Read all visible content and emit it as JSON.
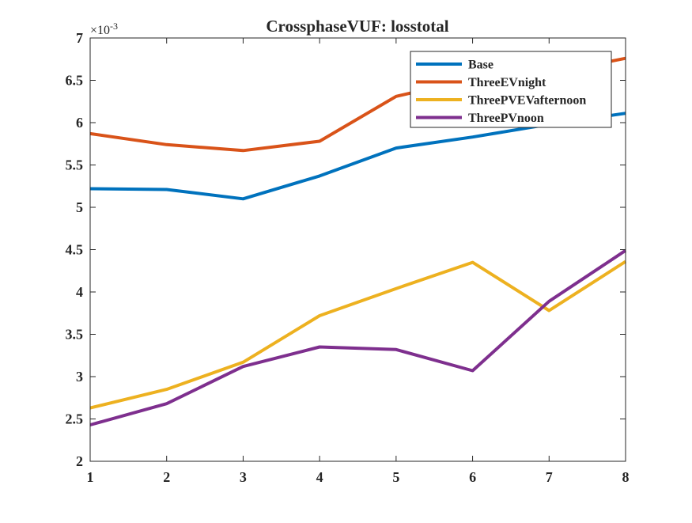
{
  "chart_data": {
    "type": "line",
    "title": "CrossphaseVUF: losstotal",
    "xlabel": "",
    "ylabel": "",
    "exponent_label": "×10",
    "exponent_power": "-3",
    "xlim": [
      1,
      8
    ],
    "ylim": [
      2,
      7
    ],
    "x_ticks": [
      "1",
      "2",
      "3",
      "4",
      "5",
      "6",
      "7",
      "8"
    ],
    "y_ticks": [
      "2",
      "2.5",
      "3",
      "3.5",
      "4",
      "4.5",
      "5",
      "5.5",
      "6",
      "6.5",
      "7"
    ],
    "x": [
      1,
      2,
      3,
      4,
      5,
      6,
      7,
      8
    ],
    "legend_position": "top-right",
    "grid": false,
    "series": [
      {
        "name": "Base",
        "color": "#0072BD",
        "values": [
          5.22,
          5.21,
          5.1,
          5.37,
          5.7,
          5.83,
          5.98,
          6.11
        ]
      },
      {
        "name": "ThreeEVnight",
        "color": "#D95319",
        "values": [
          5.87,
          5.74,
          5.67,
          5.78,
          6.31,
          6.52,
          6.58,
          6.76
        ]
      },
      {
        "name": "ThreePVEVafternoon",
        "color": "#EDB120",
        "values": [
          2.63,
          2.85,
          3.17,
          3.72,
          4.04,
          4.35,
          3.78,
          4.36
        ]
      },
      {
        "name": "ThreePVnoon",
        "color": "#7E2F8E",
        "values": [
          2.43,
          2.68,
          3.12,
          3.35,
          3.32,
          3.07,
          3.89,
          4.49
        ]
      }
    ]
  }
}
